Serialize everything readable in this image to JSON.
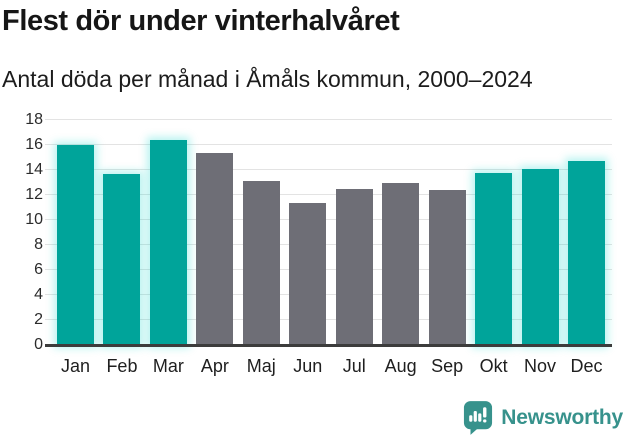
{
  "chart_data": {
    "type": "bar",
    "title": "Flest dör under vinterhalvåret",
    "subtitle": "Antal döda per månad i Åmåls kommun, 2000–2024",
    "categories": [
      "Jan",
      "Feb",
      "Mar",
      "Apr",
      "Maj",
      "Jun",
      "Jul",
      "Aug",
      "Sep",
      "Okt",
      "Nov",
      "Dec"
    ],
    "values": [
      16.0,
      13.7,
      16.4,
      15.4,
      13.1,
      11.4,
      12.5,
      13.0,
      12.4,
      13.8,
      14.1,
      14.7
    ],
    "highlight_flags": [
      true,
      true,
      true,
      false,
      false,
      false,
      false,
      false,
      false,
      true,
      true,
      true
    ],
    "highlighted_months": [
      "Jan",
      "Feb",
      "Mar",
      "Okt",
      "Nov",
      "Dec"
    ],
    "xlabel": "",
    "ylabel": "",
    "ylim": [
      0,
      18
    ],
    "yticks": [
      0,
      2,
      4,
      6,
      8,
      10,
      12,
      14,
      16,
      18
    ],
    "grid": true,
    "legend": false,
    "colors": {
      "highlight_bar": "#00a49a",
      "default_bar": "#6e6e76",
      "gridline": "#e3e3e3",
      "axis_line": "#3c3c3c"
    }
  },
  "footer": {
    "brand": "Newsworthy",
    "brand_color": "#37928c"
  }
}
